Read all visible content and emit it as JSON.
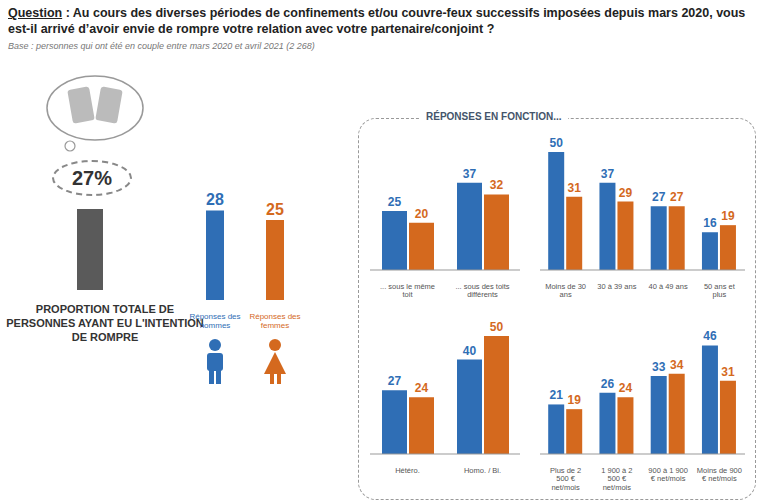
{
  "question_label": "Question",
  "question": ": Au cours des diverses périodes de confinements et/ou couvre-feux successifs imposées depuis mars 2020, vous est-il arrivé d’avoir envie de rompre votre relation avec votre partenaire/conjoint ?",
  "base": "Base : personnes qui ont été en couple entre mars 2020 et avril 2021 (2 268)",
  "section_title": "RÉPONSES EN FONCTION...",
  "chart_data": [
    {
      "type": "bar",
      "categories": [
        "PROPORTION TOTALE DE PERSONNES AYANT EU L'INTENTION DE ROMPRE"
      ],
      "values": [
        27
      ],
      "value_labels": [
        "27%"
      ],
      "color": "#5a5a5a",
      "ylim": [
        0,
        30
      ],
      "yticks": [
        0,
        30
      ],
      "tick_labels": false,
      "data_labels": false
    },
    {
      "type": "bar",
      "categories": [
        "Réponses des hommes",
        "Réponses des femmes"
      ],
      "values": [
        28,
        25
      ],
      "colors": [
        "#2f6eb5",
        "#d4691e"
      ],
      "ylim": [
        0,
        30
      ],
      "yticks": [
        0,
        30
      ],
      "tick_labels": "x",
      "data_labels": true
    },
    {
      "type": "bar",
      "categories": [
        "... sous le même toit",
        "... sous des toits différents"
      ],
      "series": [
        {
          "color": "#2f6eb5",
          "values": [
            25,
            37
          ]
        },
        {
          "color": "#d4691e",
          "values": [
            20,
            32
          ]
        }
      ],
      "ylim": [
        0,
        50
      ],
      "yticks": [
        0,
        50
      ],
      "tick_labels": "x",
      "data_labels": true
    },
    {
      "type": "bar",
      "categories": [
        "Moins de 30 ans",
        "30 à 39 ans",
        "40 à 49 ans",
        "50 ans et plus"
      ],
      "series": [
        {
          "color": "#2f6eb5",
          "values": [
            50,
            37,
            27,
            16
          ]
        },
        {
          "color": "#d4691e",
          "values": [
            31,
            29,
            27,
            19
          ]
        }
      ],
      "ylim": [
        0,
        50
      ],
      "yticks": [
        0,
        50
      ],
      "tick_labels": "x",
      "data_labels": true
    },
    {
      "type": "bar",
      "categories": [
        "Hétéro.",
        "Homo. / Bi."
      ],
      "series": [
        {
          "color": "#2f6eb5",
          "values": [
            27,
            40
          ]
        },
        {
          "color": "#d4691e",
          "values": [
            24,
            50
          ]
        }
      ],
      "ylim": [
        0,
        50
      ],
      "yticks": [
        0,
        50
      ],
      "tick_labels": "x",
      "data_labels": true
    },
    {
      "type": "bar",
      "categories": [
        "Plus de 2 500 € net/mois",
        "1 900 à 2 500 € net/mois",
        "900 à 1 900 € net/mois",
        "Moins de 900 € net/mois"
      ],
      "series": [
        {
          "color": "#2f6eb5",
          "values": [
            21,
            26,
            33,
            46
          ]
        },
        {
          "color": "#d4691e",
          "values": [
            19,
            24,
            34,
            31
          ]
        }
      ],
      "ylim": [
        0,
        50
      ],
      "yticks": [
        0,
        50
      ],
      "tick_labels": "x",
      "data_labels": true
    }
  ]
}
